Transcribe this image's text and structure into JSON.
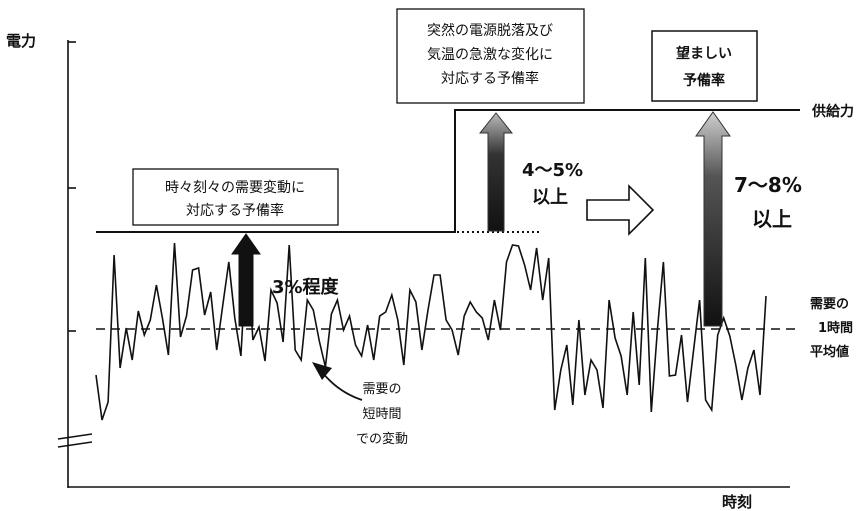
{
  "axes": {
    "y_label": "電力",
    "x_label": "時刻"
  },
  "legend": {
    "supply": "供給力",
    "avg_line": [
      "需要の",
      "1時間",
      "平均値"
    ]
  },
  "boxes": {
    "left": [
      "時々刻々の需要変動に",
      "対応する予備率"
    ],
    "middle": [
      "突然の電源脱落及び",
      "気温の急激な変化に",
      "対応する予備率"
    ],
    "right": [
      "望ましい",
      "予備率"
    ]
  },
  "values": {
    "small": "3%程度",
    "medium": [
      "4～5%",
      "以上"
    ],
    "large": [
      "7～8%",
      "以上"
    ]
  },
  "annotation": [
    "需要の",
    "短時間",
    "での変動"
  ]
}
